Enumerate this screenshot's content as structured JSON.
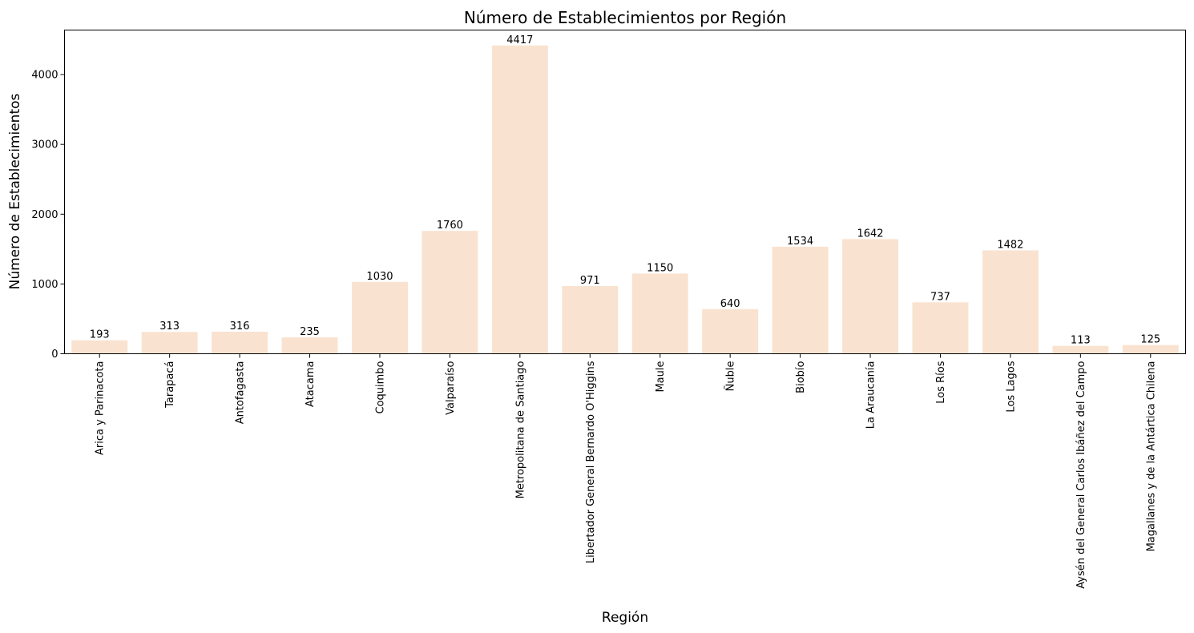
{
  "chart_data": {
    "type": "bar",
    "title": "Número de Establecimientos por Región",
    "xlabel": "Región",
    "ylabel": "Número de Establecimientos",
    "categories": [
      "Arica y Parinacota",
      "Tarapacá",
      "Antofagasta",
      "Atacama",
      "Coquimbo",
      "Valparaíso",
      "Metropolitana de Santiago",
      "Libertador General Bernardo O'Higgins",
      "Maule",
      "Ñuble",
      "Biobío",
      "La Araucanía",
      "Los Ríos",
      "Los Lagos",
      "Aysén del General Carlos Ibáñez del Campo",
      "Magallanes y de la Antártica Chilena"
    ],
    "values": [
      193,
      313,
      316,
      235,
      1030,
      1760,
      4417,
      971,
      1150,
      640,
      1534,
      1642,
      737,
      1482,
      113,
      125
    ],
    "ylim": [
      0,
      4638
    ],
    "yticks": [
      0,
      1000,
      2000,
      3000,
      4000
    ],
    "grid": false,
    "bar_color": "#f9e3d0"
  }
}
